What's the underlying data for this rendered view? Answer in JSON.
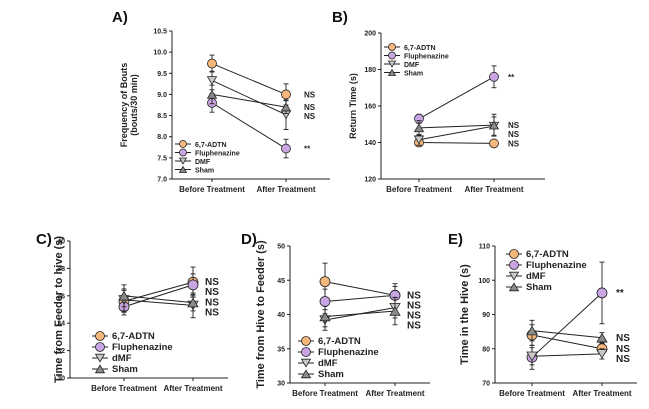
{
  "colors": {
    "adtn": "#f5b77a",
    "fluphenazine": "#c9a6e3",
    "dmf": "#c8c8c8",
    "sham": "#8a8a8a",
    "line": "#222222"
  },
  "chart_data": [
    {
      "panel": "A)",
      "type": "line",
      "categories": [
        "Before Treatment",
        "After Treatment"
      ],
      "ylabel": [
        "Frequency of Bouts",
        "(bouts/30 min)"
      ],
      "ylim": [
        7.0,
        10.5
      ],
      "yticks": [
        "7.0",
        "7.5",
        "8.0",
        "8.5",
        "9.0",
        "9.5",
        "10.0",
        "10.5"
      ],
      "ytick_values": [
        7.0,
        7.5,
        8.0,
        8.5,
        9.0,
        9.5,
        10.0,
        10.5
      ],
      "legend_position": "bottom-left",
      "series": [
        {
          "name": "6,7-ADTN",
          "marker": "circle",
          "key": "adtn",
          "values": [
            9.73,
            9.0
          ],
          "errors": [
            0.2,
            0.25
          ],
          "sig": "NS"
        },
        {
          "name": "Fluphenazine",
          "marker": "circle",
          "key": "fluphenazine",
          "values": [
            8.8,
            7.72
          ],
          "errors": [
            0.22,
            0.22
          ],
          "sig": "**"
        },
        {
          "name": "DMF",
          "marker": "triangle-down",
          "key": "dmf",
          "values": [
            9.33,
            8.52
          ],
          "errors": [
            0.22,
            0.35
          ],
          "sig": "NS"
        },
        {
          "name": "Sham",
          "marker": "triangle-up",
          "key": "sham",
          "values": [
            9.0,
            8.7
          ],
          "errors": [
            0.22,
            0.15
          ],
          "sig": "NS"
        }
      ]
    },
    {
      "panel": "B)",
      "type": "line",
      "categories": [
        "Before Treatment",
        "After Treatment"
      ],
      "ylabel": [
        "Return Time (s)"
      ],
      "ylim": [
        120,
        200
      ],
      "yticks": [
        "120",
        "140",
        "160",
        "180",
        "200"
      ],
      "ytick_values": [
        120,
        140,
        160,
        180,
        200
      ],
      "legend_position": "top-left",
      "series": [
        {
          "name": "6,7-ADTN",
          "marker": "circle",
          "key": "adtn",
          "values": [
            140.0,
            139.5
          ],
          "errors": [
            2.0,
            1.0
          ],
          "sig": "NS"
        },
        {
          "name": "Fluphenazine",
          "marker": "circle",
          "key": "fluphenazine",
          "values": [
            153.0,
            176.0
          ],
          "errors": [
            2.5,
            6.0
          ],
          "sig": "**"
        },
        {
          "name": "DMF",
          "marker": "triangle-down",
          "key": "dmf",
          "values": [
            141.5,
            149.0
          ],
          "errors": [
            3.0,
            5.0
          ],
          "sig": "NS"
        },
        {
          "name": "Sham",
          "marker": "triangle-up",
          "key": "sham",
          "values": [
            148.0,
            149.5
          ],
          "errors": [
            4.0,
            6.0
          ],
          "sig": "NS"
        }
      ]
    },
    {
      "panel": "C)",
      "type": "line",
      "categories": [
        "Before Treatment",
        "After Treatment"
      ],
      "ylabel": [
        "Time from Feeder to hive (s)"
      ],
      "ylim": [
        30,
        40
      ],
      "yticks": [
        "30",
        "32",
        "34",
        "36",
        "38",
        "40"
      ],
      "ytick_values": [
        30,
        32,
        34,
        36,
        38,
        40
      ],
      "legend_position": "bottom-left",
      "series": [
        {
          "name": "6,7-ADTN",
          "marker": "circle",
          "key": "adtn",
          "values": [
            35.6,
            37.0
          ],
          "errors": [
            0.8,
            1.1
          ],
          "sig": "NS"
        },
        {
          "name": "Fluphenazine",
          "marker": "circle",
          "key": "fluphenazine",
          "values": [
            35.2,
            36.8
          ],
          "errors": [
            0.6,
            0.8
          ],
          "sig": "NS"
        },
        {
          "name": "dMF",
          "marker": "triangle-down",
          "key": "dmf",
          "values": [
            35.7,
            35.3
          ],
          "errors": [
            0.8,
            0.9
          ],
          "sig": "NS"
        },
        {
          "name": "Sham",
          "marker": "triangle-up",
          "key": "sham",
          "values": [
            36.0,
            35.5
          ],
          "errors": [
            0.8,
            0.6
          ],
          "sig": "NS"
        }
      ]
    },
    {
      "panel": "D)",
      "type": "line",
      "categories": [
        "Before Treatment",
        "After Treatment"
      ],
      "ylabel": [
        "Time from Hive to Feeder (s)"
      ],
      "ylim": [
        30,
        50
      ],
      "yticks": [
        "30",
        "35",
        "40",
        "45",
        "50"
      ],
      "ytick_values": [
        30,
        35,
        40,
        45,
        50
      ],
      "legend_position": "bottom-left",
      "series": [
        {
          "name": "6,7-ADTN",
          "marker": "circle",
          "key": "adtn",
          "values": [
            44.8,
            42.8
          ],
          "errors": [
            2.7,
            1.7
          ],
          "sig": "NS"
        },
        {
          "name": "Fluphenazine",
          "marker": "circle",
          "key": "fluphenazine",
          "values": [
            41.9,
            42.8
          ],
          "errors": [
            1.8,
            1.3
          ],
          "sig": "NS"
        },
        {
          "name": "dMF",
          "marker": "triangle-down",
          "key": "dmf",
          "values": [
            39.2,
            41.0
          ],
          "errors": [
            1.5,
            1.5
          ],
          "sig": "NS"
        },
        {
          "name": "Sham",
          "marker": "triangle-up",
          "key": "sham",
          "values": [
            39.7,
            40.5
          ],
          "errors": [
            1.5,
            2.0
          ],
          "sig": "NS"
        }
      ]
    },
    {
      "panel": "E)",
      "type": "line",
      "categories": [
        "Before Treatment",
        "After Treatment"
      ],
      "ylabel": [
        "Time in the Hive (s)"
      ],
      "ylim": [
        70,
        110
      ],
      "yticks": [
        "70",
        "80",
        "90",
        "100",
        "110"
      ],
      "ytick_values": [
        70,
        80,
        90,
        100,
        110
      ],
      "legend_position": "top-left",
      "series": [
        {
          "name": "6,7-ADTN",
          "marker": "circle",
          "key": "adtn",
          "values": [
            84.0,
            80.0
          ],
          "errors": [
            3.0,
            1.5
          ],
          "sig": "NS"
        },
        {
          "name": "Fluphenazine",
          "marker": "circle",
          "key": "fluphenazine",
          "values": [
            77.5,
            96.3
          ],
          "errors": [
            3.5,
            9.0
          ],
          "sig": "**"
        },
        {
          "name": "dMF",
          "marker": "triangle-down",
          "key": "dmf",
          "values": [
            77.8,
            78.5
          ],
          "errors": [
            2.5,
            1.5
          ],
          "sig": "NS"
        },
        {
          "name": "Sham",
          "marker": "triangle-up",
          "key": "sham",
          "values": [
            85.3,
            83.2
          ],
          "errors": [
            3.0,
            1.5
          ],
          "sig": "NS"
        }
      ]
    }
  ]
}
